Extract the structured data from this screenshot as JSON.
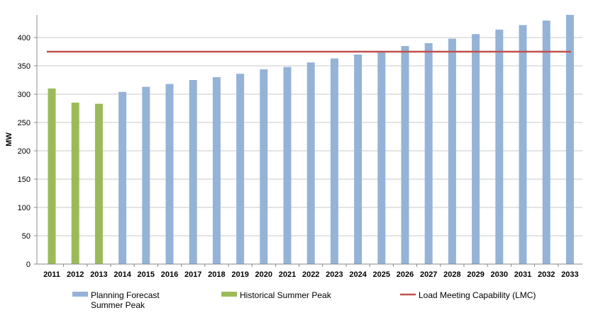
{
  "chart_data": {
    "type": "bar",
    "ylabel": "MW",
    "ylim": [
      0,
      440
    ],
    "yticks": [
      0,
      50,
      100,
      150,
      200,
      250,
      300,
      350,
      400
    ],
    "grid": true,
    "legend_position": "bottom",
    "categories": [
      "2011",
      "2012",
      "2013",
      "2014",
      "2015",
      "2016",
      "2017",
      "2018",
      "2019",
      "2020",
      "2021",
      "2022",
      "2023",
      "2024",
      "2025",
      "2026",
      "2027",
      "2028",
      "2029",
      "2030",
      "2031",
      "2032",
      "2033"
    ],
    "series": [
      {
        "name": "Planning Forecast Summer Peak",
        "legend_lines": [
          "Planning Forecast",
          "Summer Peak"
        ],
        "color": "#95b3d7",
        "values": [
          null,
          null,
          null,
          304,
          313,
          318,
          325,
          330,
          336,
          344,
          348,
          356,
          363,
          370,
          376,
          385,
          390,
          398,
          406,
          414,
          422,
          430,
          440
        ]
      },
      {
        "name": "Historical Summer Peak",
        "legend_lines": [
          "Historical Summer Peak"
        ],
        "color": "#9bbb59",
        "values": [
          310,
          285,
          283,
          null,
          null,
          null,
          null,
          null,
          null,
          null,
          null,
          null,
          null,
          null,
          null,
          null,
          null,
          null,
          null,
          null,
          null,
          null,
          null
        ]
      }
    ],
    "reference_line": {
      "name": "Load Meeting Capability  (LMC)",
      "legend_lines": [
        "Load Meeting Capability  (LMC)"
      ],
      "color": "#c0504d",
      "value": 375
    }
  }
}
